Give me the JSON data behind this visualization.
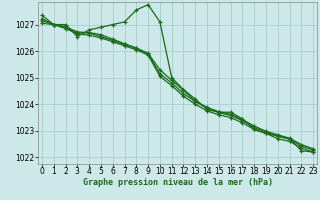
{
  "line1": {
    "x": [
      0,
      1,
      2,
      3,
      4,
      5,
      6,
      7,
      8,
      9,
      10,
      11,
      12,
      13,
      14,
      15,
      16,
      17,
      18,
      19,
      20,
      21,
      22,
      23
    ],
    "y": [
      1027.35,
      1027.0,
      1027.0,
      1026.55,
      1026.8,
      1026.9,
      1027.0,
      1027.1,
      1027.55,
      1027.75,
      1027.1,
      1025.0,
      1024.55,
      1024.2,
      1023.8,
      1023.7,
      1023.7,
      1023.45,
      1023.05,
      1022.9,
      1022.8,
      1022.7,
      1022.25,
      1022.2
    ]
  },
  "line2": {
    "x": [
      0,
      1,
      2,
      3,
      4,
      5,
      6,
      7,
      8,
      9,
      10,
      11,
      12,
      13,
      14,
      15,
      16,
      17,
      18,
      19,
      20,
      21,
      22,
      23
    ],
    "y": [
      1027.05,
      1027.0,
      1026.85,
      1026.65,
      1026.6,
      1026.5,
      1026.35,
      1026.2,
      1026.05,
      1025.85,
      1025.05,
      1024.7,
      1024.3,
      1024.0,
      1023.75,
      1023.6,
      1023.5,
      1023.3,
      1023.05,
      1022.9,
      1022.7,
      1022.6,
      1022.35,
      1022.2
    ]
  },
  "line3": {
    "x": [
      0,
      1,
      2,
      3,
      4,
      5,
      6,
      7,
      8,
      9,
      10,
      11,
      12,
      13,
      14,
      15,
      16,
      17,
      18,
      19,
      20,
      21,
      22,
      23
    ],
    "y": [
      1027.15,
      1027.0,
      1026.9,
      1026.7,
      1026.68,
      1026.55,
      1026.4,
      1026.25,
      1026.1,
      1025.9,
      1025.15,
      1024.8,
      1024.4,
      1024.1,
      1023.85,
      1023.68,
      1023.58,
      1023.38,
      1023.12,
      1022.95,
      1022.8,
      1022.68,
      1022.42,
      1022.28
    ]
  },
  "line4": {
    "x": [
      0,
      1,
      2,
      3,
      4,
      5,
      6,
      7,
      8,
      9,
      10,
      11,
      12,
      13,
      14,
      15,
      16,
      17,
      18,
      19,
      20,
      21,
      22,
      23
    ],
    "y": [
      1027.22,
      1027.0,
      1026.92,
      1026.72,
      1026.7,
      1026.62,
      1026.45,
      1026.28,
      1026.12,
      1025.92,
      1025.3,
      1024.9,
      1024.52,
      1024.12,
      1023.88,
      1023.72,
      1023.62,
      1023.42,
      1023.18,
      1022.98,
      1022.85,
      1022.72,
      1022.48,
      1022.32
    ]
  },
  "line_color": "#1a6b1a",
  "bg_color": "#cce8e8",
  "grid_color": "#aacccc",
  "xlabel": "Graphe pression niveau de la mer (hPa)",
  "ylim": [
    1021.75,
    1027.85
  ],
  "xlim": [
    -0.3,
    23.3
  ],
  "yticks": [
    1022,
    1023,
    1024,
    1025,
    1026,
    1027
  ],
  "xticks": [
    0,
    1,
    2,
    3,
    4,
    5,
    6,
    7,
    8,
    9,
    10,
    11,
    12,
    13,
    14,
    15,
    16,
    17,
    18,
    19,
    20,
    21,
    22,
    23
  ],
  "tick_fontsize": 5.5,
  "xlabel_fontsize": 6.0
}
